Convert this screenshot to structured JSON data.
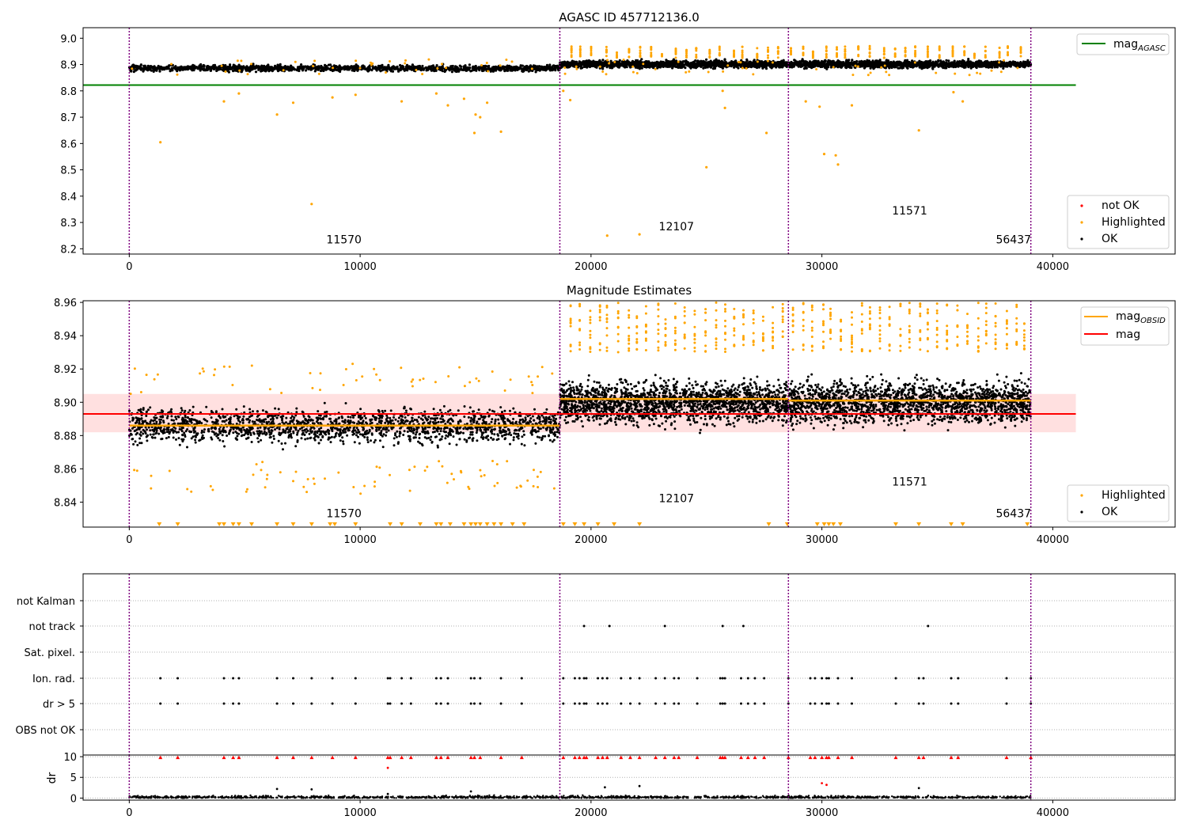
{
  "figure": {
    "title": "AGASC ID 457712136.0"
  },
  "colors": {
    "ok": "#000000",
    "highlighted": "#ffa500",
    "not_ok": "#ff0000",
    "mag_agasc_line": "#008000",
    "mag_obsid_line": "#ffa500",
    "mag_line": "#ff0000",
    "mag_band": "#ffcccc",
    "obsid_divider": "#800080",
    "grid": "#b0b0b0"
  },
  "chart_data": [
    {
      "type": "scatter",
      "panel": "top",
      "title": "AGASC ID 457712136.0",
      "xlim": [
        -2000,
        45300
      ],
      "ylim": [
        8.18,
        9.04
      ],
      "xticks": [
        0,
        10000,
        20000,
        30000,
        40000
      ],
      "yticks": [
        8.2,
        8.3,
        8.4,
        8.5,
        8.6,
        8.7,
        8.8,
        8.9,
        9.0
      ],
      "grid": false,
      "obsid_dividers": [
        0,
        18650,
        28550,
        39050
      ],
      "obsid_labels": [
        {
          "x": 9300,
          "y": 8.22,
          "text": "11570"
        },
        {
          "x": 23700,
          "y": 8.27,
          "text": "12107"
        },
        {
          "x": 33800,
          "y": 8.33,
          "text": "11571"
        },
        {
          "x": 38300,
          "y": 8.22,
          "text": "56437"
        }
      ],
      "reference_lines": [
        {
          "name": "mag_AGASC",
          "y": 8.822,
          "x_range": [
            -2000,
            41000
          ],
          "color": "#008000"
        }
      ],
      "series": [
        {
          "name": "OK",
          "segments": [
            {
              "x_range": [
                0,
                18650
              ],
              "mean": 8.886,
              "spread": 0.011
            },
            {
              "x_range": [
                18650,
                28550
              ],
              "mean": 8.901,
              "spread": 0.013
            },
            {
              "x_range": [
                28550,
                39050
              ],
              "mean": 8.901,
              "spread": 0.013
            }
          ]
        },
        {
          "name": "Highlighted",
          "points": [
            [
              1350,
              8.605
            ],
            [
              4100,
              8.76
            ],
            [
              4750,
              8.79
            ],
            [
              6400,
              8.71
            ],
            [
              7100,
              8.755
            ],
            [
              7900,
              8.37
            ],
            [
              8800,
              8.775
            ],
            [
              9800,
              8.785
            ],
            [
              11800,
              8.76
            ],
            [
              13300,
              8.79
            ],
            [
              13800,
              8.745
            ],
            [
              14500,
              8.77
            ],
            [
              14950,
              8.64
            ],
            [
              15000,
              8.71
            ],
            [
              15200,
              8.7
            ],
            [
              15500,
              8.755
            ],
            [
              16100,
              8.645
            ],
            [
              18800,
              8.8
            ],
            [
              19100,
              8.765
            ],
            [
              20700,
              8.25
            ],
            [
              22100,
              8.255
            ],
            [
              25000,
              8.51
            ],
            [
              25700,
              8.8
            ],
            [
              25800,
              8.735
            ],
            [
              27600,
              8.64
            ],
            [
              29300,
              8.76
            ],
            [
              29900,
              8.74
            ],
            [
              30100,
              8.56
            ],
            [
              30600,
              8.555
            ],
            [
              30700,
              8.52
            ],
            [
              31300,
              8.745
            ],
            [
              34200,
              8.65
            ],
            [
              35700,
              8.795
            ],
            [
              36100,
              8.76
            ]
          ]
        },
        {
          "name": "not OK",
          "points": []
        }
      ],
      "legends": [
        {
          "position": "upper right",
          "entries": [
            "mag_AGASC"
          ]
        },
        {
          "position": "lower right",
          "entries": [
            "not OK",
            "Highlighted",
            "OK"
          ]
        }
      ]
    },
    {
      "type": "scatter",
      "panel": "middle",
      "title": "Magnitude Estimates",
      "xlim": [
        -2000,
        45300
      ],
      "ylim": [
        8.825,
        8.961
      ],
      "xticks": [
        0,
        10000,
        20000,
        30000,
        40000
      ],
      "yticks": [
        8.84,
        8.86,
        8.88,
        8.9,
        8.92,
        8.94,
        8.96
      ],
      "grid": false,
      "obsid_dividers": [
        0,
        18650,
        28550,
        39050
      ],
      "obsid_labels": [
        {
          "x": 9300,
          "y": 8.831,
          "text": "11570"
        },
        {
          "x": 23700,
          "y": 8.84,
          "text": "12107"
        },
        {
          "x": 33800,
          "y": 8.85,
          "text": "11571"
        },
        {
          "x": 38300,
          "y": 8.831,
          "text": "56437"
        }
      ],
      "mag": {
        "value": 8.893,
        "band": [
          8.882,
          8.905
        ],
        "x_range": [
          -2000,
          41000
        ]
      },
      "mag_obsid": [
        {
          "x_range": [
            0,
            18650
          ],
          "value": 8.886
        },
        {
          "x_range": [
            18650,
            28550
          ],
          "value": 8.902
        },
        {
          "x_range": [
            28550,
            39050
          ],
          "value": 8.901
        }
      ],
      "series": [
        {
          "name": "OK",
          "segments": [
            {
              "x_range": [
                0,
                18650
              ],
              "mean": 8.886,
              "spread": 0.009
            },
            {
              "x_range": [
                18650,
                28550
              ],
              "mean": 8.9,
              "spread": 0.011
            },
            {
              "x_range": [
                28550,
                39050
              ],
              "mean": 8.9,
              "spread": 0.011
            }
          ]
        },
        {
          "name": "Highlighted",
          "note": "values beyond the y range shown as triangles at the axis limits"
        }
      ],
      "legends": [
        {
          "position": "upper right",
          "entries": [
            "mag_OBSID",
            "mag"
          ]
        },
        {
          "position": "lower right",
          "entries": [
            "Highlighted",
            "OK"
          ]
        }
      ]
    },
    {
      "type": "scatter",
      "panel": "flags",
      "xlim": [
        -2000,
        45300
      ],
      "categories": [
        "not Kalman",
        "not track",
        "Sat. pixel.",
        "Ion. rad.",
        "dr > 5",
        "OBS not OK"
      ],
      "grid": true,
      "obsid_dividers": [
        0,
        18650,
        28550,
        39050
      ],
      "flag_times": {
        "not track": [
          19700,
          20800,
          23200,
          25700,
          26600,
          34600
        ],
        "Ion. rad.": [
          1350,
          2100,
          4100,
          4500,
          4750,
          6400,
          7100,
          7900,
          8800,
          9800,
          11200,
          11300,
          11800,
          12200,
          13300,
          13500,
          13800,
          14800,
          14950,
          15200,
          16100,
          17000,
          18800,
          19300,
          19500,
          19700,
          19800,
          20300,
          20500,
          20700,
          21300,
          21700,
          22100,
          22800,
          23200,
          23600,
          23800,
          24600,
          25600,
          25700,
          25800,
          26500,
          26800,
          27100,
          27500,
          28550,
          29500,
          29700,
          30000,
          30200,
          30300,
          30700,
          31300,
          33200,
          34200,
          34400,
          35600,
          35900,
          38000,
          39050
        ],
        "dr > 5": [
          1350,
          2100,
          4100,
          4500,
          4750,
          6400,
          7100,
          7900,
          8800,
          9800,
          11200,
          11300,
          11800,
          12200,
          13300,
          13500,
          13800,
          14800,
          14950,
          15200,
          16100,
          17000,
          18800,
          19300,
          19500,
          19700,
          19800,
          20300,
          20500,
          20700,
          21300,
          21700,
          22100,
          22800,
          23200,
          23600,
          23800,
          24600,
          25600,
          25700,
          25800,
          26500,
          26800,
          27100,
          27500,
          28550,
          29500,
          29700,
          30000,
          30200,
          30300,
          30700,
          31300,
          33200,
          34200,
          34400,
          35600,
          35900,
          38000,
          39050
        ]
      }
    },
    {
      "type": "scatter",
      "panel": "dr",
      "xlim": [
        -2000,
        45300
      ],
      "ylim": [
        -0.5,
        10.4
      ],
      "xticks": [
        0,
        10000,
        20000,
        30000,
        40000
      ],
      "yticks": [
        0,
        5,
        10
      ],
      "ylabel": "dr",
      "grid": true,
      "obsid_dividers": [
        0,
        18650,
        28550,
        39050
      ],
      "clipped_points": [
        1350,
        2100,
        4100,
        4500,
        4750,
        6400,
        7100,
        7900,
        8800,
        9800,
        11200,
        11300,
        11800,
        12200,
        13300,
        13500,
        13800,
        14800,
        14950,
        15200,
        16100,
        17000,
        18800,
        19300,
        19500,
        19700,
        19800,
        20300,
        20500,
        20700,
        21300,
        21700,
        22100,
        22800,
        23200,
        23600,
        23800,
        24600,
        25600,
        25700,
        25800,
        26500,
        26800,
        27100,
        27500,
        28550,
        29500,
        29700,
        30000,
        30200,
        30300,
        30700,
        31300,
        33200,
        34200,
        34400,
        35600,
        35900,
        38000,
        39050
      ],
      "red_points": [
        [
          11200,
          7.3
        ],
        [
          30000,
          3.6
        ],
        [
          30200,
          3.2
        ]
      ],
      "black_outliers": [
        [
          6400,
          2.2
        ],
        [
          7900,
          2.1
        ],
        [
          14800,
          1.6
        ],
        [
          20600,
          2.6
        ],
        [
          22100,
          2.9
        ],
        [
          34200,
          2.4
        ],
        [
          11200,
          1.0
        ]
      ]
    }
  ],
  "legend_labels": {
    "mag_agasc": {
      "base": "mag",
      "sub": "AGASC"
    },
    "mag_obsid": {
      "base": "mag",
      "sub": "OBSID"
    },
    "mag": "mag",
    "not_ok": "not OK",
    "highlighted": "Highlighted",
    "ok": "OK"
  }
}
